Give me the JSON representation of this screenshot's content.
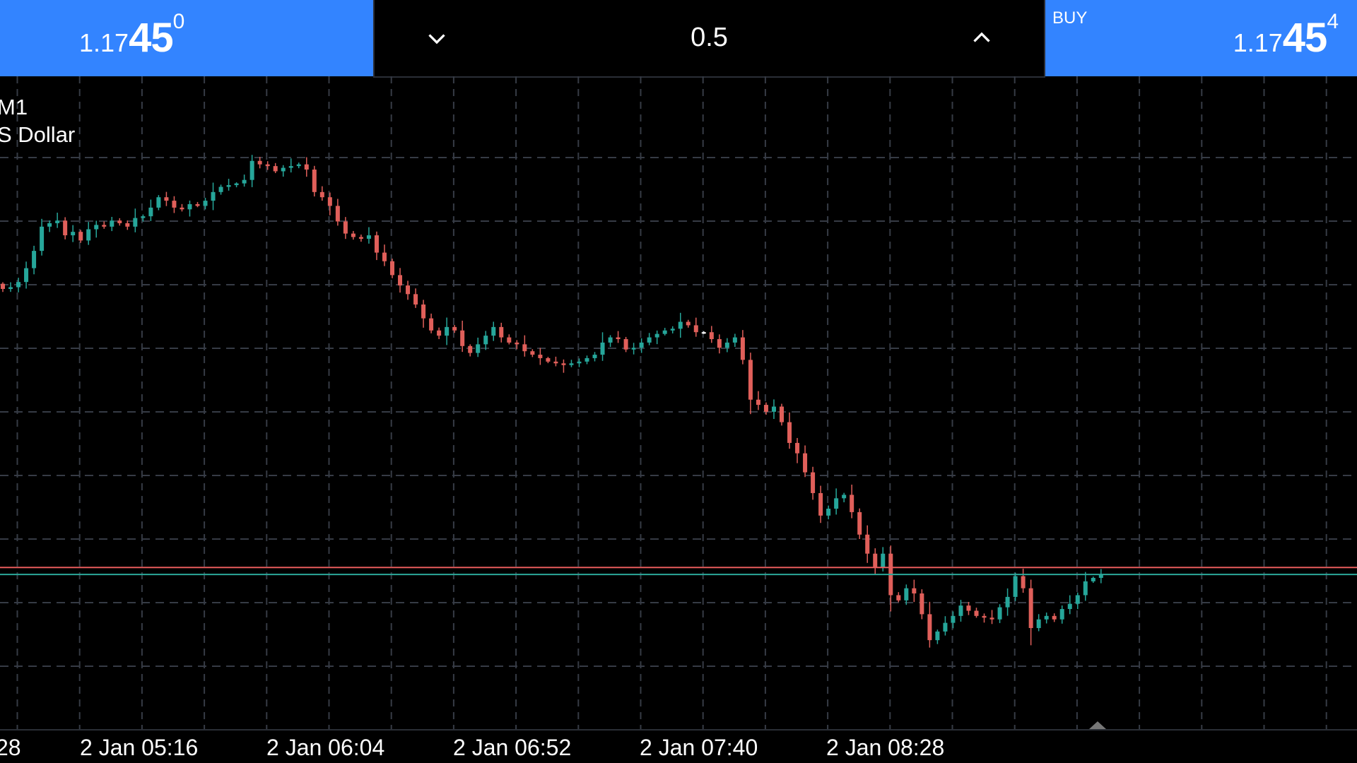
{
  "sell": {
    "price_prefix": "1.17",
    "price_big": "45",
    "price_sup": "0",
    "color": "#3384ff"
  },
  "volume": {
    "value": "0.5",
    "decrease_icon": "chevron-down-icon",
    "increase_icon": "chevron-up-icon"
  },
  "buy": {
    "label": "BUY",
    "price_prefix": "1.17",
    "price_big": "45",
    "price_sup": "4",
    "color": "#3384ff"
  },
  "chart_info": {
    "timeframe": "M1",
    "symbol_name": "S Dollar"
  },
  "chart_data": {
    "type": "candlestick",
    "timeframe": "M1",
    "x_tick_labels": [
      "28",
      "2 Jan 05:16",
      "2 Jan 06:04",
      "2 Jan 06:52",
      "2 Jan 07:40",
      "2 Jan 08:28"
    ],
    "bid_line": 1.1745,
    "ask_line": 1.17454,
    "grid": true,
    "colors": {
      "up": "#26a69a",
      "down": "#e05f5a",
      "bid": "#2ba89a",
      "ask": "#e85c5c",
      "grid": "#363b45"
    },
    "closes": [
      1.17615,
      1.17616,
      1.17619,
      1.17627,
      1.17637,
      1.17651,
      1.17653,
      1.176545,
      1.17646,
      1.17648,
      1.17643,
      1.176495,
      1.17652,
      1.17651,
      1.176545,
      1.17653,
      1.17651,
      1.17656,
      1.17657,
      1.17662,
      1.17668,
      1.17666,
      1.17662,
      1.17661,
      1.17664,
      1.17663,
      1.17666,
      1.17671,
      1.17674,
      1.17675,
      1.17676,
      1.17678,
      1.17689,
      1.17687,
      1.17686,
      1.17683,
      1.17685,
      1.17686,
      1.17687,
      1.17684,
      1.17671,
      1.17668,
      1.17663,
      1.17654,
      1.17647,
      1.17645,
      1.17644,
      1.17646,
      1.17636,
      1.17631,
      1.17623,
      1.17617,
      1.17612,
      1.17606,
      1.17598,
      1.17591,
      1.17588,
      1.17593,
      1.17591,
      1.17582,
      1.17578,
      1.17583,
      1.17588,
      1.17593,
      1.17587,
      1.17584,
      1.17583,
      1.17579,
      1.17577,
      1.17575,
      1.17573,
      1.17572,
      1.17571,
      1.17572,
      1.17573,
      1.17575,
      1.17577,
      1.17584,
      1.17587,
      1.17586,
      1.1758,
      1.17581,
      1.17584,
      1.17587,
      1.17589,
      1.17591,
      1.17592,
      1.17596,
      1.17594,
      1.1759,
      1.1759,
      1.17586,
      1.17581,
      1.17584,
      1.17587,
      1.17574,
      1.17551,
      1.17548,
      1.17544,
      1.17547,
      1.17538,
      1.17526,
      1.1752,
      1.17509,
      1.17497,
      1.17484,
      1.17488,
      1.17494,
      1.17496,
      1.17486,
      1.17473,
      1.17462,
      1.17454,
      1.17462,
      1.17438,
      1.17435,
      1.17442,
      1.17439,
      1.17427,
      1.17412,
      1.17417,
      1.17422,
      1.17426,
      1.17432,
      1.17429,
      1.17426,
      1.17425,
      1.17424,
      1.17431,
      1.17437,
      1.17449,
      1.17442,
      1.17419,
      1.17424,
      1.17426,
      1.17424,
      1.1743,
      1.17433,
      1.17438,
      1.17446,
      1.17448,
      1.1745
    ]
  }
}
